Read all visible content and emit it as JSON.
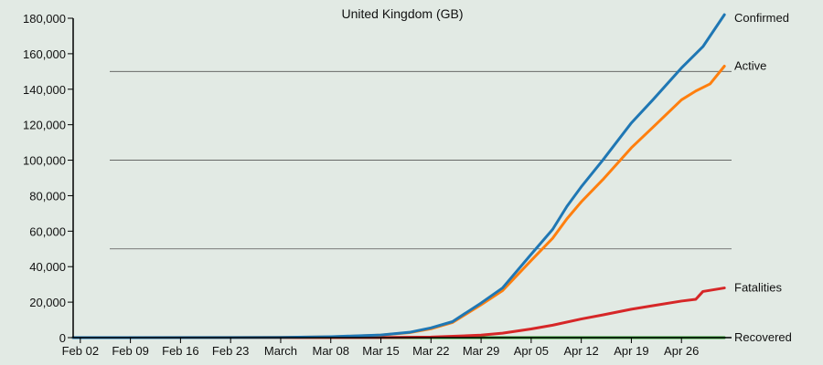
{
  "chart_data": {
    "type": "line",
    "title": "United Kingdom (GB)",
    "xlabel": "",
    "ylabel": "",
    "ylim": [
      0,
      180000
    ],
    "y_ticks": [
      0,
      20000,
      40000,
      60000,
      80000,
      100000,
      120000,
      140000,
      160000,
      180000
    ],
    "y_tick_labels": [
      "0",
      "20,000",
      "40,000",
      "60,000",
      "80,000",
      "100,000",
      "120,000",
      "140,000",
      "160,000",
      "180,000"
    ],
    "gridlines_y": [
      50000,
      100000,
      150000
    ],
    "x_range": [
      "2020-02-01",
      "2020-05-03"
    ],
    "x_ticks": [
      "2020-02-02",
      "2020-02-09",
      "2020-02-16",
      "2020-02-23",
      "2020-03-01",
      "2020-03-08",
      "2020-03-15",
      "2020-03-22",
      "2020-03-29",
      "2020-04-05",
      "2020-04-12",
      "2020-04-19",
      "2020-04-26"
    ],
    "x_tick_labels": [
      "Feb 02",
      "Feb 09",
      "Feb 16",
      "Feb 23",
      "March",
      "Mar 08",
      "Mar 15",
      "Mar 22",
      "Mar 29",
      "Apr 05",
      "Apr 12",
      "Apr 19",
      "Apr 26"
    ],
    "label_placement": "right-end-of-line",
    "series": [
      {
        "name": "Confirmed",
        "color": "#1f77b4",
        "x": [
          "2020-02-01",
          "2020-03-01",
          "2020-03-08",
          "2020-03-15",
          "2020-03-19",
          "2020-03-22",
          "2020-03-25",
          "2020-03-29",
          "2020-04-01",
          "2020-04-05",
          "2020-04-08",
          "2020-04-10",
          "2020-04-12",
          "2020-04-15",
          "2020-04-19",
          "2020-04-22",
          "2020-04-26",
          "2020-04-29",
          "2020-05-02"
        ],
        "y": [
          0,
          100,
          500,
          1500,
          3000,
          5500,
          9000,
          19500,
          28000,
          47000,
          61000,
          74000,
          85000,
          100000,
          121000,
          134000,
          152000,
          164000,
          182000
        ]
      },
      {
        "name": "Active",
        "color": "#ff7f0e",
        "x": [
          "2020-02-01",
          "2020-03-01",
          "2020-03-08",
          "2020-03-15",
          "2020-03-19",
          "2020-03-22",
          "2020-03-25",
          "2020-03-29",
          "2020-04-01",
          "2020-04-05",
          "2020-04-08",
          "2020-04-10",
          "2020-04-12",
          "2020-04-15",
          "2020-04-19",
          "2020-04-22",
          "2020-04-26",
          "2020-04-28",
          "2020-04-30",
          "2020-05-02"
        ],
        "y": [
          0,
          100,
          450,
          1400,
          2800,
          5000,
          8500,
          18500,
          26500,
          43500,
          56000,
          67000,
          76500,
          89000,
          107000,
          118500,
          134000,
          139000,
          143000,
          153000
        ]
      },
      {
        "name": "Fatalities",
        "color": "#d62728",
        "x": [
          "2020-02-01",
          "2020-03-15",
          "2020-03-22",
          "2020-03-29",
          "2020-04-01",
          "2020-04-05",
          "2020-04-08",
          "2020-04-12",
          "2020-04-15",
          "2020-04-19",
          "2020-04-22",
          "2020-04-26",
          "2020-04-28",
          "2020-04-29",
          "2020-05-02"
        ],
        "y": [
          0,
          50,
          300,
          1400,
          2500,
          4900,
          7000,
          10500,
          12800,
          16000,
          18000,
          20600,
          21600,
          26000,
          28000
        ]
      },
      {
        "name": "Recovered",
        "color": "#2ca02c",
        "x": [
          "2020-02-01",
          "2020-04-12",
          "2020-04-19",
          "2020-05-02"
        ],
        "y": [
          0,
          0,
          0,
          0
        ]
      }
    ]
  }
}
